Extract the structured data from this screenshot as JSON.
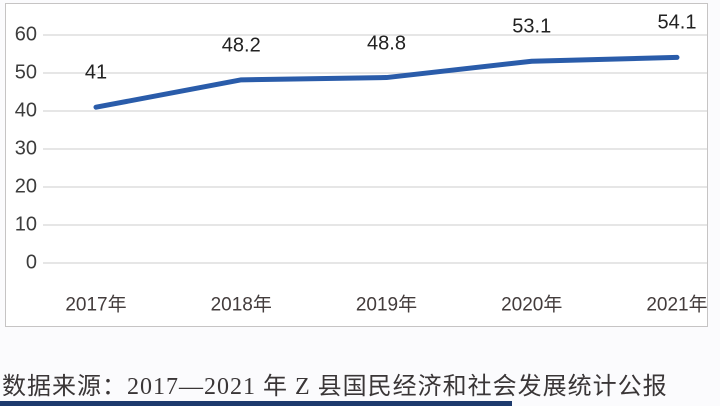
{
  "chart_data": {
    "type": "line",
    "categories": [
      "2017年",
      "2018年",
      "2019年",
      "2020年",
      "2021年"
    ],
    "values": [
      41,
      48.2,
      48.8,
      53.1,
      54.1
    ],
    "data_labels": [
      "41",
      "48.2",
      "48.8",
      "53.1",
      "54.1"
    ],
    "y_ticks": [
      0,
      10,
      20,
      30,
      40,
      50,
      60
    ],
    "ylim": [
      0,
      60
    ],
    "title": "",
    "xlabel": "",
    "ylabel": "",
    "grid": true,
    "legend": "none",
    "line_color": "#2a5caa",
    "gridline_color": "#d8d8d8"
  },
  "source_note": "数据来源：2017—2021 年 Z 县国民经济和社会发展统计公报",
  "colors": {
    "accent_bar": "#1d3a6d",
    "frame_border": "#c6c4c4",
    "background": "#ffffff"
  }
}
